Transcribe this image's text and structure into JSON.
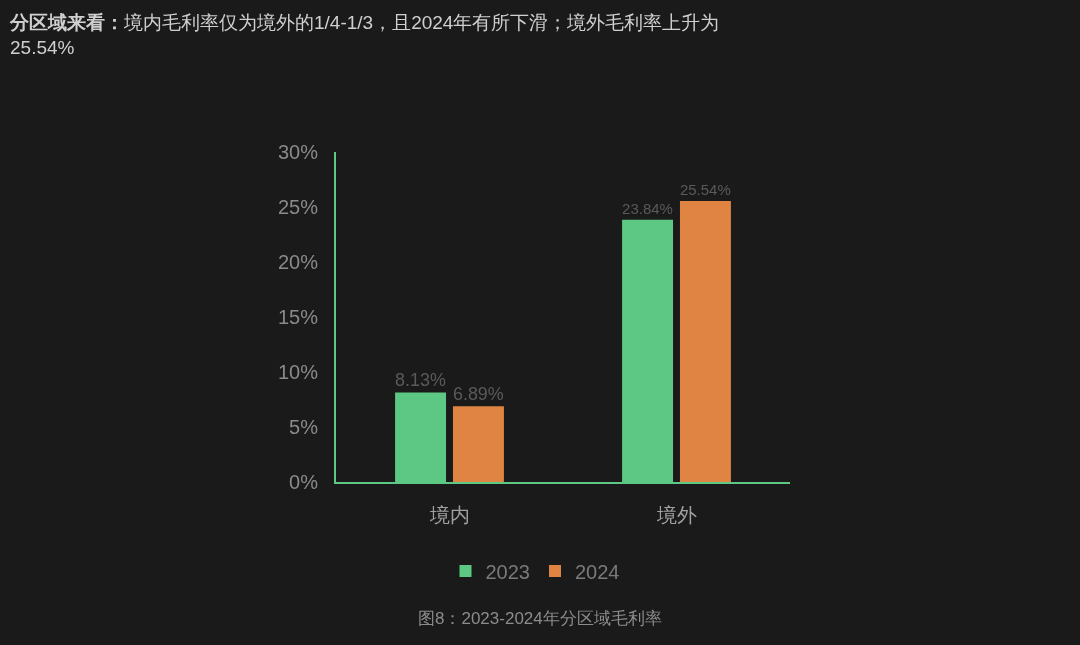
{
  "chart_data": {
    "type": "bar",
    "title": "分区域来看：",
    "subtitle": "境内毛利率仅为境外的1/4-1/3，且2024年有所下滑；境外毛利率上升为25.54%",
    "categories": [
      "境内",
      "境外"
    ],
    "series": [
      {
        "name": "2023",
        "color": "#5cc883",
        "values": [
          8.13,
          23.84
        ],
        "value_labels": [
          "8.13%",
          "23.84%"
        ]
      },
      {
        "name": "2024",
        "color": "#e08444",
        "values": [
          6.89,
          25.54
        ],
        "value_labels": [
          "6.89%",
          "25.54%"
        ]
      }
    ],
    "ylim": [
      0,
      30
    ],
    "yticks": [
      {
        "value": 0,
        "label": "0%"
      },
      {
        "value": 5,
        "label": "5%"
      },
      {
        "value": 10,
        "label": "10%"
      },
      {
        "value": 15,
        "label": "15%"
      },
      {
        "value": 20,
        "label": "20%"
      },
      {
        "value": 25,
        "label": "25%"
      },
      {
        "value": 30,
        "label": "30%"
      }
    ],
    "legend": "bottom",
    "annotations": [
      "图8：2023-2024年分区域毛利率"
    ]
  }
}
